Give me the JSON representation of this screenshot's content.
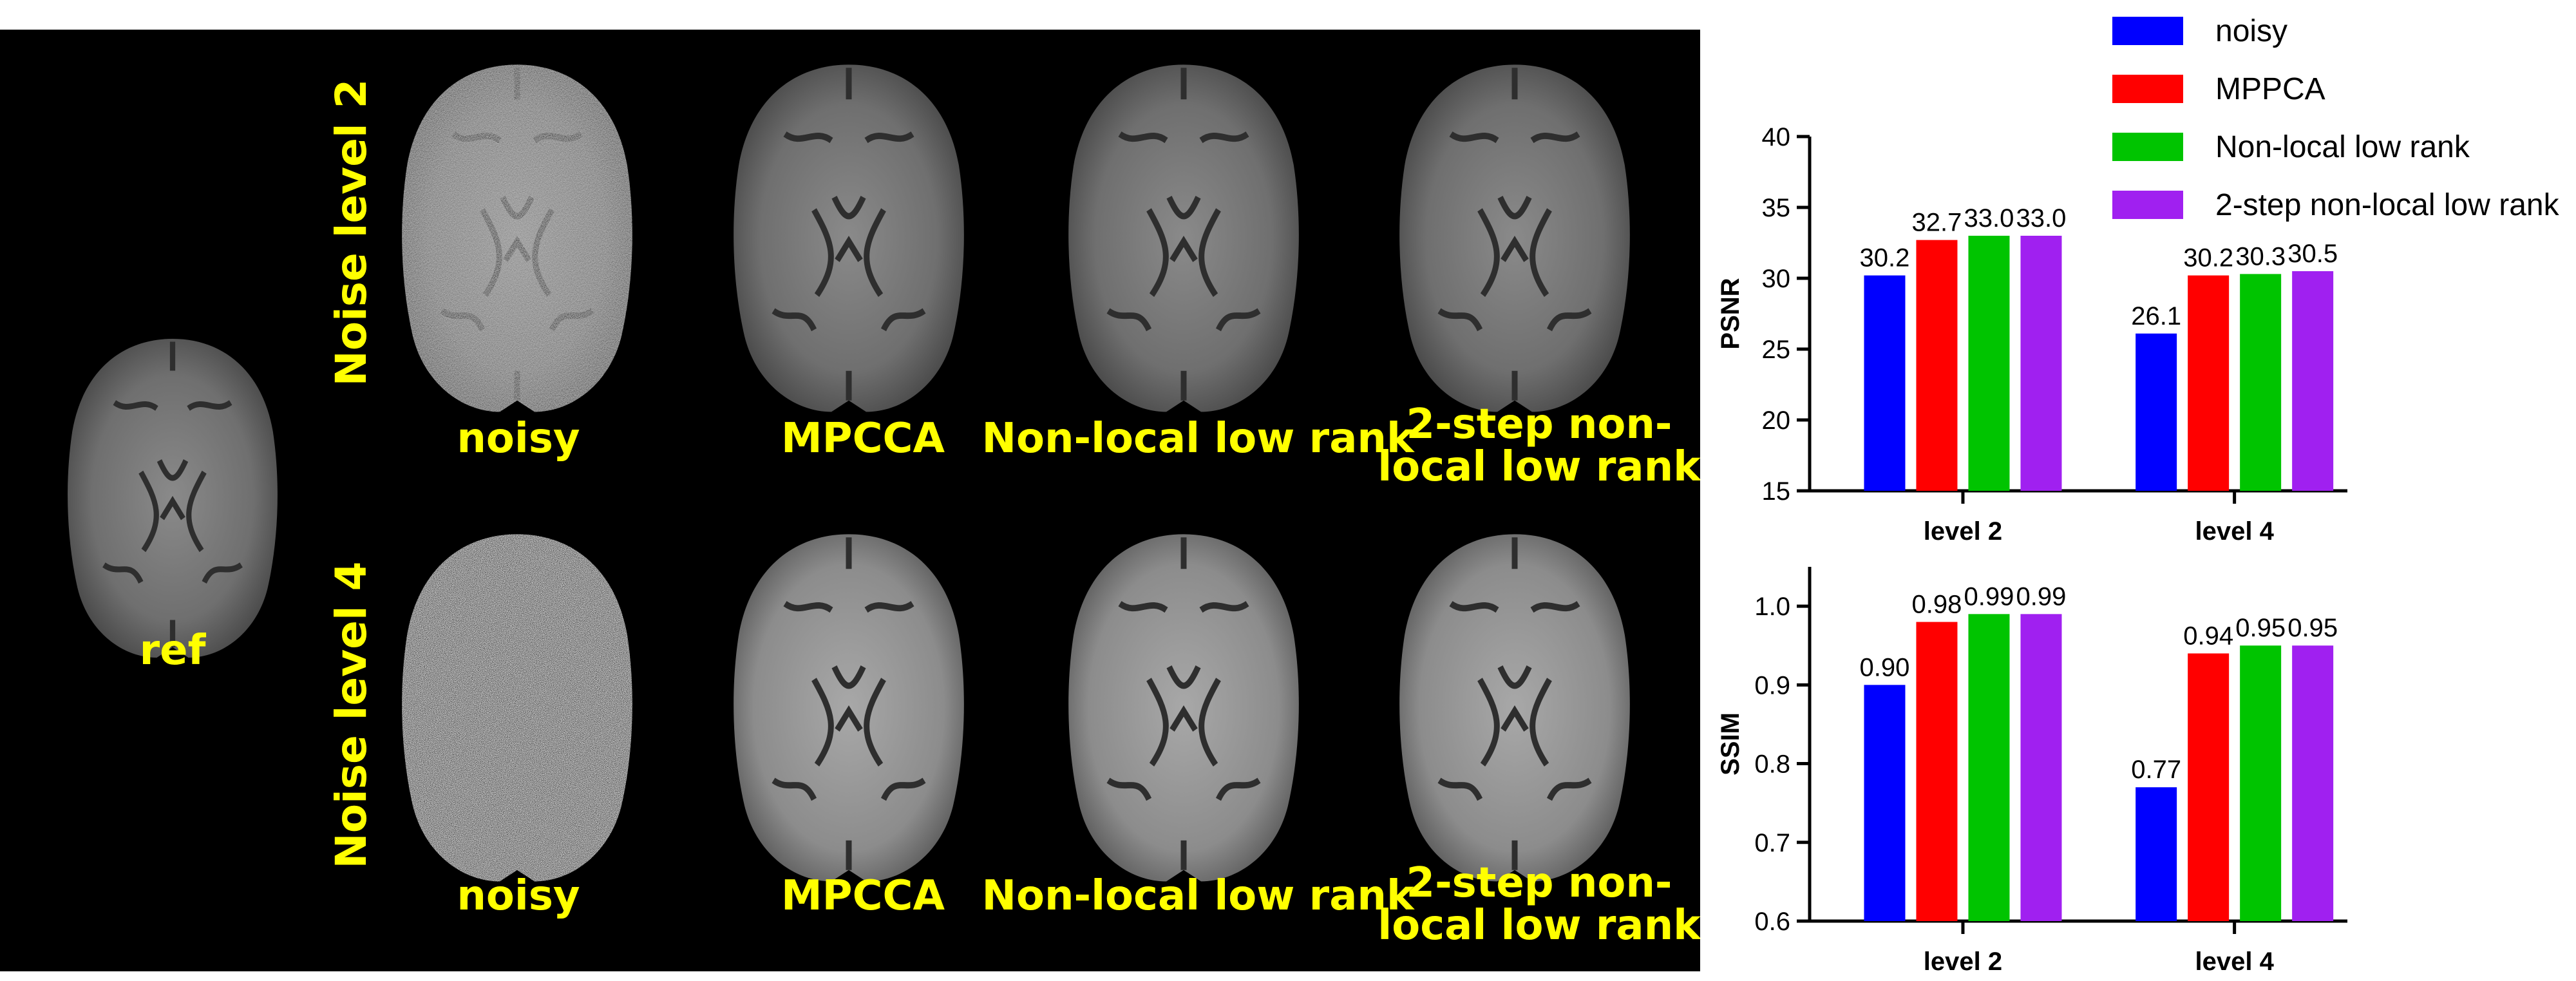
{
  "panel": {
    "row_labels": [
      "Noise level 2",
      "Noise level 4"
    ],
    "ref_label": "ref",
    "captions": {
      "noisy": "noisy",
      "mpcca": "MPCCA",
      "nonlocal": "Non-local low rank",
      "twostep_line1": "2-step non-",
      "twostep_line2": "local low rank"
    }
  },
  "colors": {
    "noisy": "#0000ff",
    "mppca": "#ff0000",
    "nonlocal": "#00c400",
    "twostep": "#a020f0",
    "caption": "#ffff00",
    "background": "#000000"
  },
  "chart_data": [
    {
      "type": "bar",
      "ylabel": "PSNR",
      "categories": [
        "level 2",
        "level 4"
      ],
      "ylim": [
        15,
        40
      ],
      "yticks": [
        "15",
        "20",
        "25",
        "30",
        "35",
        "40"
      ],
      "series": [
        {
          "name": "noisy",
          "values": [
            30.2,
            26.1
          ],
          "labels": [
            "30.2",
            "26.1"
          ]
        },
        {
          "name": "MPPCA",
          "values": [
            32.7,
            30.2
          ],
          "labels": [
            "32.7",
            "30.2"
          ]
        },
        {
          "name": "Non-local low rank",
          "values": [
            33.0,
            30.3
          ],
          "labels": [
            "33.0",
            "30.3"
          ]
        },
        {
          "name": "2-step non-local low rank",
          "values": [
            33.0,
            30.5
          ],
          "labels": [
            "33.0",
            "30.5"
          ]
        }
      ],
      "legend": "top-right",
      "grid": false
    },
    {
      "type": "bar",
      "ylabel": "SSIM",
      "categories": [
        "level 2",
        "level 4"
      ],
      "ylim": [
        0.6,
        1.05
      ],
      "yticks": [
        "0.6",
        "0.7",
        "0.8",
        "0.9",
        "1.0"
      ],
      "series": [
        {
          "name": "noisy",
          "values": [
            0.9,
            0.77
          ],
          "labels": [
            "0.90",
            "0.77"
          ]
        },
        {
          "name": "MPPCA",
          "values": [
            0.98,
            0.94
          ],
          "labels": [
            "0.98",
            "0.94"
          ]
        },
        {
          "name": "Non-local low rank",
          "values": [
            0.99,
            0.95
          ],
          "labels": [
            "0.99",
            "0.95"
          ]
        },
        {
          "name": "2-step non-local low rank",
          "values": [
            0.99,
            0.95
          ],
          "labels": [
            "0.99",
            "0.95"
          ]
        }
      ],
      "grid": false
    }
  ]
}
